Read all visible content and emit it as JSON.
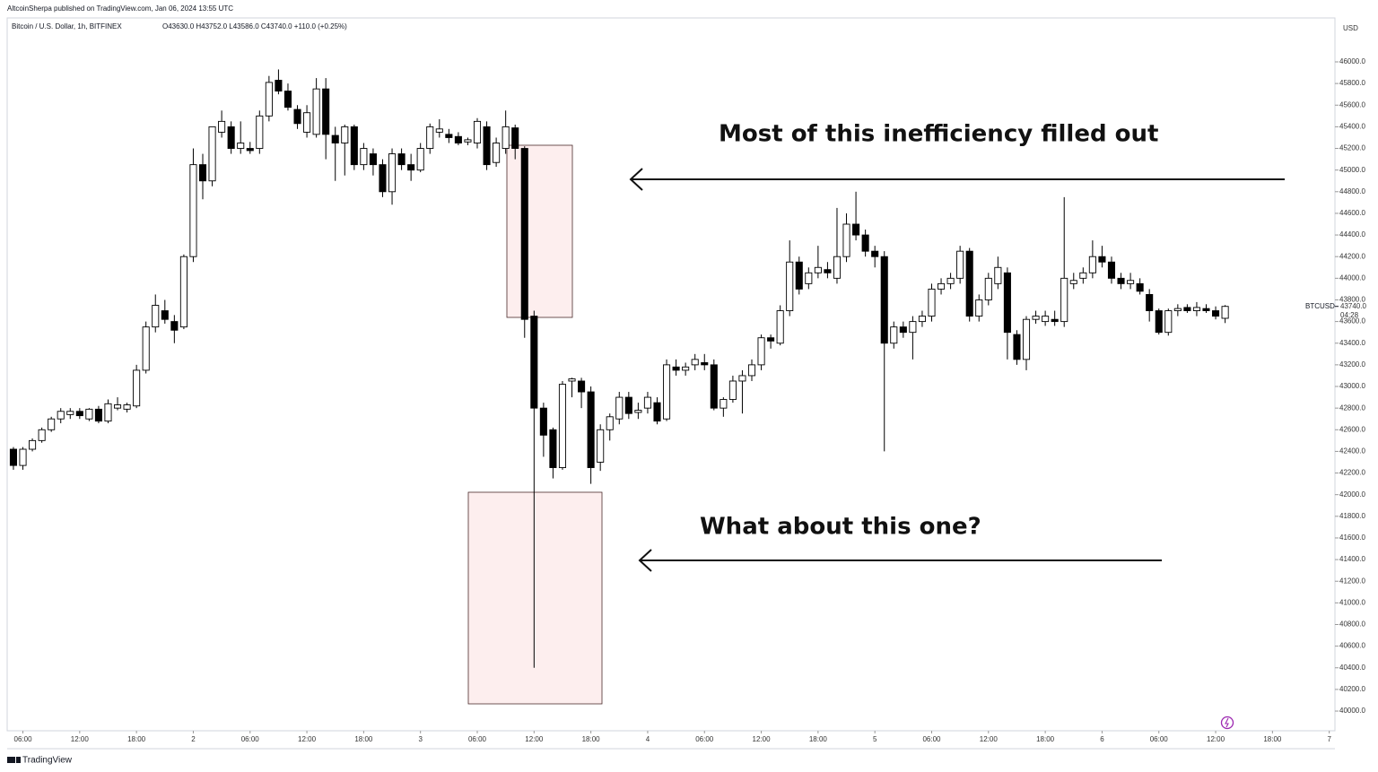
{
  "header": "AltcoinSherpa published on TradingView.com, Jan 06, 2024 13:55 UTC",
  "footer": "TradingView",
  "chart_data": {
    "type": "candlestick",
    "title": "Bitcoin / U.S. Dollar, 1h, BITFINEX",
    "ohlc_label": "O43630.0 H43752.0 L43586.0 C43740.0 +110.0 (+0.25%)",
    "currency": "USD",
    "symbol": "BTCUSD",
    "last_price": 43740,
    "last_price_label": "43740.0",
    "countdown": "04:28",
    "up_color": "#ffffff",
    "down_color": "#000000",
    "annotations": [
      "Most of this inefficiency filled out",
      "What about this one?"
    ],
    "open": [
      42420,
      42270,
      42420,
      42500,
      42600,
      42700,
      42740,
      42770,
      42700,
      42790,
      42680,
      42800,
      42790,
      42820,
      43150,
      43550,
      43700,
      43600,
      43550,
      44200,
      45050,
      44900,
      45350,
      45400,
      45200,
      45200,
      45200,
      45500,
      45830,
      45730,
      45560,
      45350,
      45330,
      45750,
      45320,
      45250,
      45400,
      45050,
      45150,
      45050,
      44800,
      45150,
      45050,
      45000,
      45200,
      45350,
      45330,
      45310,
      45260,
      45250,
      45400,
      45070,
      45200,
      45390,
      45200,
      43650,
      42800,
      42600,
      42250,
      43050,
      43050,
      42950,
      42300,
      42600,
      42700,
      42900,
      42760,
      42800,
      42850,
      42700,
      43180,
      43150,
      43200,
      43220,
      43200,
      42800,
      42880,
      43050,
      43100,
      43200,
      43450,
      43400,
      43700,
      44150,
      43950,
      44050,
      44080,
      44000,
      44200,
      44500,
      44400,
      44250,
      44200,
      43400,
      43550,
      43500,
      43600,
      43650,
      43900,
      43950,
      44000,
      44250,
      43650,
      43800,
      43950,
      44050,
      43480,
      43250,
      43620,
      43600,
      43620,
      43600,
      43950,
      44000,
      44050,
      44200,
      44150,
      44000,
      43950,
      43950,
      43850,
      43700,
      43500,
      43700,
      43730,
      43700,
      43720,
      43700,
      43630
    ],
    "high": [
      42440,
      42440,
      42520,
      42620,
      42720,
      42800,
      42800,
      42800,
      42800,
      42820,
      42880,
      42900,
      42850,
      43200,
      43600,
      43850,
      43800,
      43660,
      44220,
      45200,
      45150,
      45400,
      45550,
      45450,
      45450,
      45260,
      45550,
      45870,
      45930,
      45800,
      45600,
      45600,
      45850,
      45850,
      45400,
      45420,
      45420,
      45250,
      45200,
      45100,
      45200,
      45200,
      45150,
      45250,
      45430,
      45470,
      45380,
      45350,
      45300,
      45480,
      45450,
      45300,
      45550,
      45420,
      45220,
      43700,
      42850,
      42620,
      43050,
      43080,
      43080,
      43000,
      42650,
      42750,
      42950,
      42950,
      42850,
      42950,
      42900,
      43250,
      43250,
      43220,
      43300,
      43300,
      43250,
      42900,
      43100,
      43150,
      43250,
      43480,
      43480,
      43750,
      44350,
      44200,
      44100,
      44300,
      44150,
      44650,
      44600,
      44800,
      44450,
      44300,
      44250,
      43600,
      43600,
      43650,
      43700,
      43950,
      44000,
      44050,
      44300,
      44280,
      43850,
      44050,
      44200,
      44100,
      43520,
      43650,
      43700,
      43700,
      43700,
      44750,
      44050,
      44100,
      44350,
      44300,
      44200,
      44050,
      44050,
      44000,
      43900,
      43720,
      43720,
      43760,
      43760,
      43780,
      43760,
      43740,
      43752
    ],
    "low": [
      42230,
      42230,
      42400,
      42480,
      42580,
      42660,
      42700,
      42700,
      42680,
      42660,
      42660,
      42780,
      42760,
      42800,
      43120,
      43500,
      43580,
      43400,
      43530,
      44150,
      44730,
      44850,
      45300,
      45150,
      45150,
      45150,
      45150,
      45450,
      45700,
      45550,
      45380,
      45300,
      45300,
      45100,
      44900,
      44950,
      45000,
      45000,
      44950,
      44750,
      44680,
      45000,
      44900,
      44980,
      45150,
      45300,
      45250,
      45230,
      45230,
      45200,
      45000,
      45030,
      45150,
      45100,
      43450,
      40400,
      42350,
      42150,
      42230,
      42900,
      42800,
      42100,
      42220,
      42500,
      42650,
      42700,
      42700,
      42750,
      42650,
      42680,
      43100,
      43100,
      43150,
      43150,
      42780,
      42720,
      42850,
      42750,
      43050,
      43150,
      43350,
      43380,
      43650,
      43850,
      43900,
      44000,
      44000,
      43950,
      44150,
      44350,
      44200,
      44100,
      42400,
      43350,
      43450,
      43250,
      43550,
      43600,
      43850,
      43900,
      43950,
      43600,
      43600,
      43750,
      43900,
      43250,
      43200,
      43150,
      43580,
      43560,
      43560,
      43550,
      43900,
      43950,
      44000,
      44100,
      43950,
      43900,
      43900,
      43850,
      43600,
      43480,
      43470,
      43650,
      43680,
      43650,
      43680,
      43620,
      43586
    ],
    "close": [
      42270,
      42420,
      42500,
      42600,
      42700,
      42770,
      42770,
      42730,
      42790,
      42680,
      42840,
      42830,
      42830,
      43150,
      43550,
      43750,
      43620,
      43520,
      44200,
      45050,
      44900,
      45400,
      45450,
      45200,
      45250,
      45180,
      45500,
      45810,
      45730,
      45580,
      45430,
      45530,
      45750,
      45330,
      45250,
      45400,
      45050,
      45200,
      45050,
      44800,
      45150,
      45050,
      45000,
      45200,
      45400,
      45380,
      45300,
      45250,
      45280,
      45450,
      45050,
      45250,
      45400,
      45200,
      43620,
      42800,
      42550,
      42250,
      43020,
      43070,
      42950,
      42250,
      42600,
      42720,
      42900,
      42750,
      42780,
      42900,
      42680,
      43200,
      43150,
      43180,
      43250,
      43200,
      42800,
      42880,
      43050,
      43100,
      43200,
      43450,
      43420,
      43700,
      44150,
      43900,
      44050,
      44100,
      44050,
      44200,
      44500,
      44400,
      44250,
      44200,
      43400,
      43550,
      43500,
      43600,
      43650,
      43900,
      43950,
      44000,
      44250,
      43650,
      43800,
      44000,
      44100,
      43500,
      43250,
      43620,
      43650,
      43650,
      43600,
      44000,
      43980,
      44050,
      44200,
      44150,
      44000,
      43950,
      43980,
      43880,
      43700,
      43500,
      43700,
      43720,
      43700,
      43730,
      43700,
      43650,
      43740
    ],
    "xlim": [
      -0.66,
      139.6
    ],
    "xticks": [
      {
        "value": 1,
        "label": "06:00"
      },
      {
        "value": 7,
        "label": "12:00"
      },
      {
        "value": 13,
        "label": "18:00"
      },
      {
        "value": 19,
        "label": "2"
      },
      {
        "value": 25,
        "label": "06:00"
      },
      {
        "value": 31,
        "label": "12:00"
      },
      {
        "value": 37,
        "label": "18:00"
      },
      {
        "value": 43,
        "label": "3"
      },
      {
        "value": 49,
        "label": "06:00"
      },
      {
        "value": 55,
        "label": "12:00"
      },
      {
        "value": 61,
        "label": "18:00"
      },
      {
        "value": 67,
        "label": "4"
      },
      {
        "value": 73,
        "label": "06:00"
      },
      {
        "value": 79,
        "label": "12:00"
      },
      {
        "value": 85,
        "label": "18:00"
      },
      {
        "value": 91,
        "label": "5"
      },
      {
        "value": 97,
        "label": "06:00"
      },
      {
        "value": 103,
        "label": "12:00"
      },
      {
        "value": 109,
        "label": "18:00"
      },
      {
        "value": 115,
        "label": "6"
      },
      {
        "value": 121,
        "label": "06:00"
      },
      {
        "value": 127,
        "label": "12:00"
      },
      {
        "value": 133,
        "label": "18:00"
      },
      {
        "value": 139,
        "label": "7"
      }
    ],
    "ylim": [
      39818,
      46406
    ],
    "yticks": [
      {
        "value": 40000,
        "label": "40000.0"
      },
      {
        "value": 40200,
        "label": "40200.0"
      },
      {
        "value": 40400,
        "label": "40400.0"
      },
      {
        "value": 40600,
        "label": "40600.0"
      },
      {
        "value": 40800,
        "label": "40800.0"
      },
      {
        "value": 41000,
        "label": "41000.0"
      },
      {
        "value": 41200,
        "label": "41200.0"
      },
      {
        "value": 41400,
        "label": "41400.0"
      },
      {
        "value": 41600,
        "label": "41600.0"
      },
      {
        "value": 41800,
        "label": "41800.0"
      },
      {
        "value": 42000,
        "label": "42000.0"
      },
      {
        "value": 42200,
        "label": "42200.0"
      },
      {
        "value": 42400,
        "label": "42400.0"
      },
      {
        "value": 42600,
        "label": "42600.0"
      },
      {
        "value": 42800,
        "label": "42800.0"
      },
      {
        "value": 43000,
        "label": "43000.0"
      },
      {
        "value": 43200,
        "label": "43200.0"
      },
      {
        "value": 43400,
        "label": "43400.0"
      },
      {
        "value": 43600,
        "label": "43600.0"
      },
      {
        "value": 43800,
        "label": "43800.0"
      },
      {
        "value": 44000,
        "label": "44000.0"
      },
      {
        "value": 44200,
        "label": "44200.0"
      },
      {
        "value": 44400,
        "label": "44400.0"
      },
      {
        "value": 44600,
        "label": "44600.0"
      },
      {
        "value": 44800,
        "label": "44800.0"
      },
      {
        "value": 45000,
        "label": "45000.0"
      },
      {
        "value": 45200,
        "label": "45200.0"
      },
      {
        "value": 45400,
        "label": "45400.0"
      },
      {
        "value": 45600,
        "label": "45600.0"
      },
      {
        "value": 45800,
        "label": "45800.0"
      },
      {
        "value": 46000,
        "label": "46000.0"
      }
    ],
    "grid": false
  }
}
